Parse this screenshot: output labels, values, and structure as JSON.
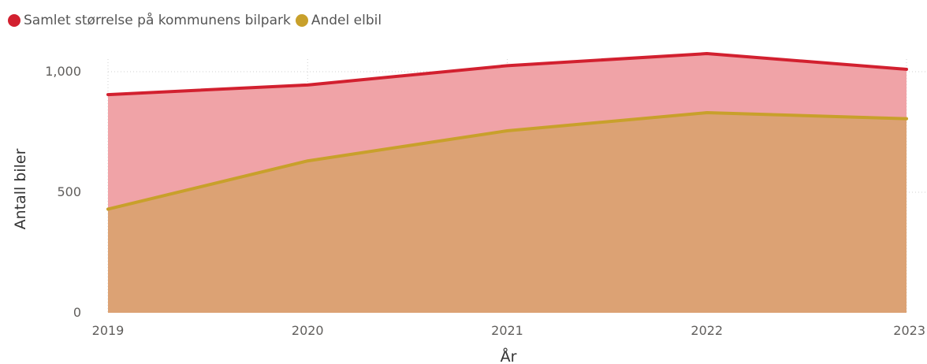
{
  "chart_data": {
    "type": "area",
    "title": "",
    "xlabel": "År",
    "ylabel": "Antall biler",
    "x": [
      "2019",
      "2020",
      "2021",
      "2022",
      "2023"
    ],
    "ylim": [
      0,
      1000
    ],
    "yticks": [
      0,
      500,
      1000
    ],
    "ytick_labels": [
      "0",
      "500",
      "1,000"
    ],
    "grid": true,
    "legend_position": "top-left",
    "series": [
      {
        "name": "Samlet størrelse på kommunens bilpark",
        "values": [
          905,
          945,
          1025,
          1075,
          1010
        ],
        "line_color": "#d2202f",
        "fill_color": "#f0a3a7"
      },
      {
        "name": "Andel elbil",
        "values": [
          430,
          630,
          755,
          830,
          805
        ],
        "line_color": "#c8a02b",
        "fill_color": "#dca274"
      }
    ]
  }
}
